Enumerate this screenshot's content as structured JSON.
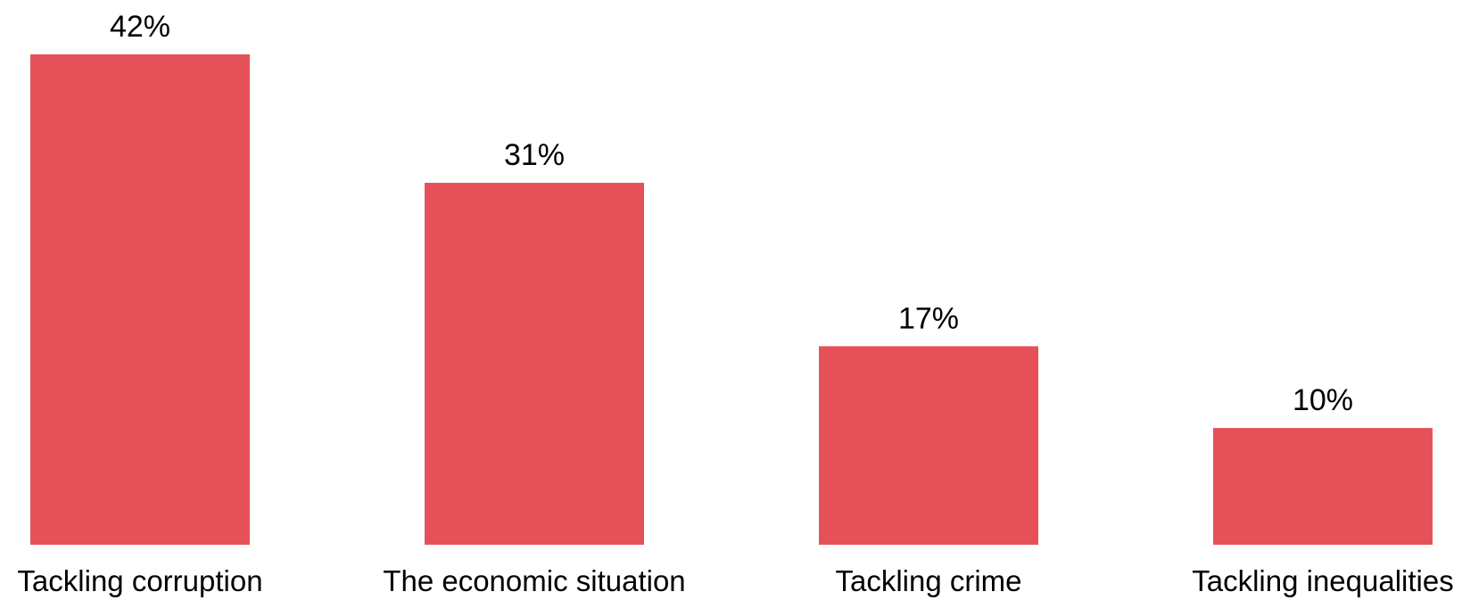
{
  "chart_data": {
    "type": "bar",
    "categories": [
      "Tackling corruption",
      "The economic situation",
      "Tackling crime",
      "Tackling inequalities"
    ],
    "values": [
      42,
      31,
      17,
      10
    ],
    "value_labels": [
      "42%",
      "31%",
      "17%",
      "10%"
    ],
    "unit": "%",
    "title": "",
    "xlabel": "",
    "ylabel": "",
    "ylim": [
      0,
      42
    ],
    "grid": false,
    "legend": "none",
    "bar_color": "#E65159"
  }
}
